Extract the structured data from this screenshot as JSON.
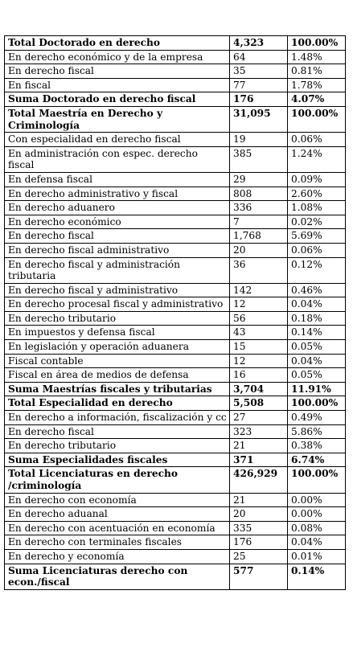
{
  "rows": [
    {
      "label": "Total Doctorado en derecho",
      "count": "4,323",
      "pct": "100.00%",
      "bold": true
    },
    {
      "label": "En derecho económico y de la empresa",
      "count": "64",
      "pct": "1.48%",
      "bold": false
    },
    {
      "label": "En derecho fiscal",
      "count": "35",
      "pct": "0.81%",
      "bold": false
    },
    {
      "label": "En fiscal",
      "count": "77",
      "pct": "1.78%",
      "bold": false
    },
    {
      "label": "Suma Doctorado en derecho fiscal",
      "count": "176",
      "pct": "4.07%",
      "bold": true
    },
    {
      "label": "Total Maestría en Derecho y Criminología",
      "count": "31,095",
      "pct": "100.00%",
      "bold": true
    },
    {
      "label": "Con especialidad en derecho fiscal",
      "count": "19",
      "pct": "0.06%",
      "bold": false
    },
    {
      "label": "En administración con espec. derecho fiscal",
      "count": "385",
      "pct": "1.24%",
      "bold": false
    },
    {
      "label": "En defensa fiscal",
      "count": "29",
      "pct": "0.09%",
      "bold": false
    },
    {
      "label": "En derecho administrativo y fiscal",
      "count": "808",
      "pct": "2.60%",
      "bold": false
    },
    {
      "label": "En derecho aduanero",
      "count": "336",
      "pct": "1.08%",
      "bold": false
    },
    {
      "label": "En derecho económico",
      "count": "7",
      "pct": "0.02%",
      "bold": false
    },
    {
      "label": "En derecho fiscal",
      "count": "1,768",
      "pct": "5.69%",
      "bold": false
    },
    {
      "label": "En derecho fiscal administrativo",
      "count": "20",
      "pct": "0.06%",
      "bold": false
    },
    {
      "label": "En derecho fiscal y administración tributaria",
      "count": "36",
      "pct": "0.12%",
      "bold": false
    },
    {
      "label": "En derecho fiscal y administrativo",
      "count": "142",
      "pct": "0.46%",
      "bold": false
    },
    {
      "label": "En derecho procesal fiscal y administrativo",
      "count": "12",
      "pct": "0.04%",
      "bold": false
    },
    {
      "label": "En derecho tributario",
      "count": "56",
      "pct": "0.18%",
      "bold": false
    },
    {
      "label": "En impuestos y defensa fiscal",
      "count": "43",
      "pct": "0.14%",
      "bold": false
    },
    {
      "label": "En legislación y operación aduanera",
      "count": "15",
      "pct": "0.05%",
      "bold": false
    },
    {
      "label": "Fiscal contable",
      "count": "12",
      "pct": "0.04%",
      "bold": false
    },
    {
      "label": "Fiscal en área de medios de defensa",
      "count": "16",
      "pct": "0.05%",
      "bold": false
    },
    {
      "label": "Suma Maestrías fiscales y tributarias",
      "count": "3,704",
      "pct": "11.91%",
      "bold": true
    },
    {
      "label": "Total Especialidad en derecho",
      "count": "5,508",
      "pct": "100.00%",
      "bold": true
    },
    {
      "label": "En derecho a información, fiscalización y cc",
      "count": "27",
      "pct": "0.49%",
      "bold": false
    },
    {
      "label": "En derecho fiscal",
      "count": "323",
      "pct": "5.86%",
      "bold": false
    },
    {
      "label": "En derecho tributario",
      "count": "21",
      "pct": "0.38%",
      "bold": false
    },
    {
      "label": "Suma Especialidades fiscales",
      "count": "371",
      "pct": "6.74%",
      "bold": true
    },
    {
      "label": "Total Licenciaturas en derecho /criminología",
      "count": "426,929",
      "pct": "100.00%",
      "bold": true
    },
    {
      "label": "En derecho con economía",
      "count": "21",
      "pct": "0.00%",
      "bold": false
    },
    {
      "label": "En derecho aduanal",
      "count": "20",
      "pct": "0.00%",
      "bold": false
    },
    {
      "label": "En derecho con acentuación en economía",
      "count": "335",
      "pct": "0.08%",
      "bold": false
    },
    {
      "label": "En derecho con terminales fiscales",
      "count": "176",
      "pct": "0.04%",
      "bold": false
    },
    {
      "label": "En derecho y economía",
      "count": "25",
      "pct": "0.01%",
      "bold": false
    },
    {
      "label": "Suma Licenciaturas derecho con econ./fiscal",
      "count": "577",
      "pct": "0.14%",
      "bold": true
    }
  ]
}
